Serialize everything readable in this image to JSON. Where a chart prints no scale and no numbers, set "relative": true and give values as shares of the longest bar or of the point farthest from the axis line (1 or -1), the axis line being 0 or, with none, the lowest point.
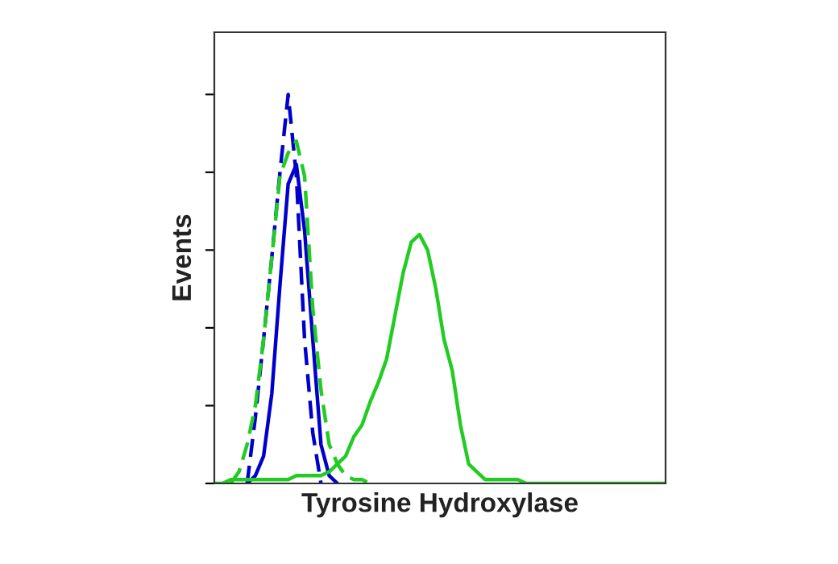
{
  "chart_data": {
    "type": "line",
    "xlabel": "Tyrosine Hydroxylase",
    "ylabel": "Events",
    "relative": true,
    "tick_labels": false,
    "grid": false,
    "legend": false,
    "marker": "none",
    "categories": [
      null,
      null,
      null,
      null,
      null,
      null,
      null,
      null,
      null,
      null,
      null,
      null,
      null,
      null,
      null,
      null,
      null,
      null,
      null,
      null,
      null,
      null,
      null,
      null,
      null,
      null,
      null,
      null,
      null,
      null,
      null,
      null,
      null,
      null,
      null,
      null,
      null,
      null,
      null,
      null,
      null,
      null,
      null,
      null,
      null,
      null,
      null,
      null,
      null,
      null,
      null,
      null,
      null,
      null,
      null,
      null
    ],
    "series": [
      {
        "color": "#0000cc",
        "line_style": "solid",
        "values": [
          null,
          null,
          null,
          null,
          0,
          0.02,
          0.07,
          0.23,
          0.51,
          0.77,
          0.82,
          0.65,
          0.37,
          0.1,
          0.02,
          0,
          null,
          null,
          null,
          null,
          null,
          null,
          null,
          null,
          null,
          null,
          null,
          null,
          null,
          null,
          null,
          null,
          null,
          null,
          null,
          null,
          null,
          null,
          null,
          null,
          null,
          null,
          null,
          null,
          null,
          null,
          null,
          null,
          null,
          null,
          null,
          null,
          null,
          null,
          null,
          null
        ]
      },
      {
        "color": "#0000cc",
        "line_style": "dashed",
        "values": [
          null,
          null,
          null,
          null,
          0,
          0.17,
          0.37,
          0.58,
          0.8,
          1.0,
          0.79,
          0.37,
          0.13,
          0,
          null,
          null,
          null,
          null,
          null,
          null,
          null,
          null,
          null,
          null,
          null,
          null,
          null,
          null,
          null,
          null,
          null,
          null,
          null,
          null,
          null,
          null,
          null,
          null,
          null,
          null,
          null,
          null,
          null,
          null,
          null,
          null,
          null,
          null,
          null,
          null,
          null,
          null,
          null,
          null,
          null,
          null
        ]
      },
      {
        "color": "#22cc22",
        "line_style": "dashed",
        "values": [
          null,
          null,
          0,
          0.03,
          0.1,
          0.2,
          0.37,
          0.58,
          0.79,
          0.85,
          0.88,
          0.79,
          0.45,
          0.24,
          0.1,
          0.05,
          0.02,
          0.01,
          0.01,
          0,
          null,
          null,
          null,
          null,
          null,
          null,
          null,
          null,
          null,
          null,
          null,
          null,
          null,
          null,
          null,
          null,
          null,
          null,
          null,
          null,
          null,
          null,
          null,
          null,
          null,
          null,
          null,
          null,
          null,
          null,
          null,
          null,
          null,
          null,
          null,
          null
        ]
      },
      {
        "color": "#22cc22",
        "line_style": "solid",
        "values": [
          0,
          0,
          0.01,
          0.01,
          0.01,
          0.01,
          0.01,
          0.01,
          0.01,
          0.01,
          0.02,
          0.02,
          0.02,
          0.02,
          0.03,
          0.05,
          0.07,
          0.12,
          0.15,
          0.21,
          0.26,
          0.32,
          0.43,
          0.54,
          0.62,
          0.64,
          0.6,
          0.5,
          0.37,
          0.29,
          0.15,
          0.05,
          0.03,
          0.01,
          0.01,
          0.01,
          0.01,
          0.01,
          0,
          0,
          0,
          0,
          0,
          0,
          0,
          0,
          0,
          0,
          0,
          0,
          0,
          0,
          0,
          0,
          0,
          0
        ]
      }
    ]
  }
}
